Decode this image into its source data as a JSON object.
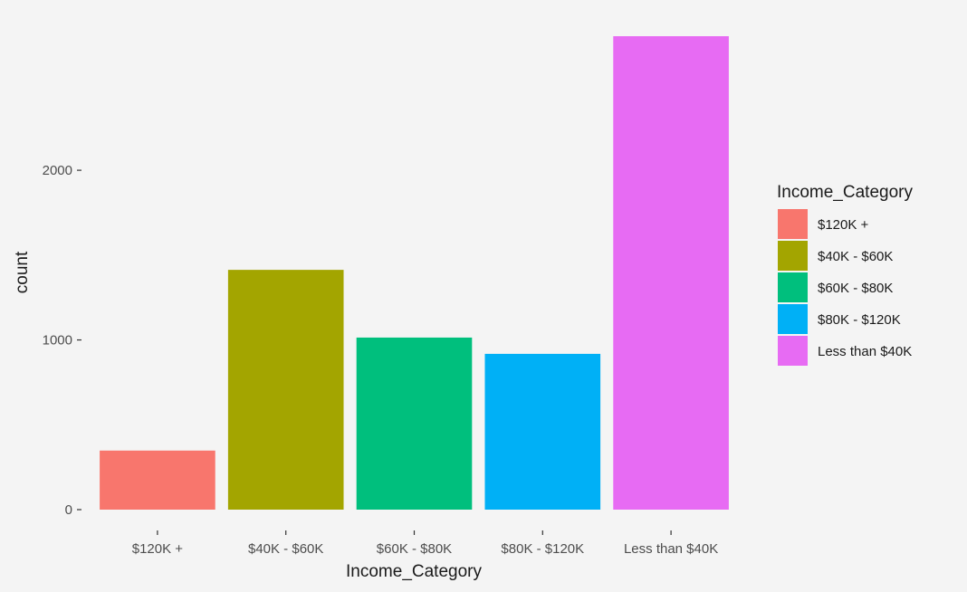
{
  "chart_data": {
    "type": "bar",
    "categories": [
      "$120K +",
      "$40K - $60K",
      "$60K - $80K",
      "$80K - $120K",
      "Less than $40K"
    ],
    "values": [
      348,
      1413,
      1014,
      918,
      2790
    ],
    "colors": [
      "#F8766D",
      "#A3A500",
      "#00BF7D",
      "#00B0F6",
      "#E76BF3"
    ],
    "title": "",
    "xlabel": "Income_Category",
    "ylabel": "count",
    "ylim": [
      0,
      2790
    ],
    "yticks": [
      0,
      1000,
      2000
    ],
    "ytick_labels": [
      "0",
      "1000",
      "2000"
    ],
    "grid": false,
    "legend": {
      "title": "Income_Category",
      "placement": "right",
      "entries": [
        "$120K +",
        "$40K - $60K",
        "$60K - $80K",
        "$80K - $120K",
        "Less than $40K"
      ]
    }
  }
}
